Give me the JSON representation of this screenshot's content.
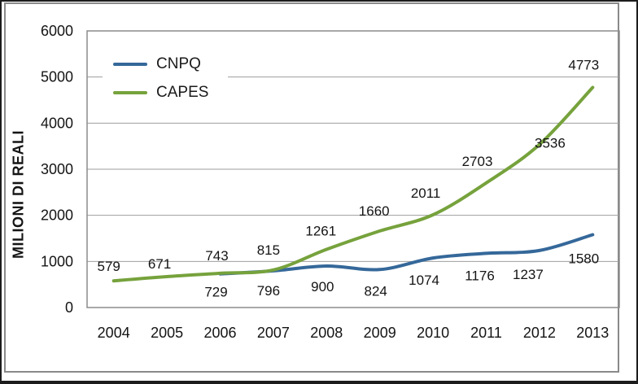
{
  "chart_data": {
    "type": "line",
    "title": "",
    "xlabel": "",
    "ylabel": "MILIONI DI REALI",
    "categories": [
      "2004",
      "2005",
      "2006",
      "2007",
      "2008",
      "2009",
      "2010",
      "2011",
      "2012",
      "2013"
    ],
    "series": [
      {
        "name": "CNPQ",
        "color": "#35689A",
        "values": [
          null,
          null,
          729,
          796,
          900,
          824,
          1074,
          1176,
          1237,
          1580
        ],
        "labels_position": "below"
      },
      {
        "name": "CAPES",
        "color": "#76A23C",
        "values": [
          579,
          671,
          743,
          815,
          1261,
          1660,
          2011,
          2703,
          3536,
          4773
        ],
        "labels_position": "above"
      }
    ],
    "ylim": [
      0,
      6000
    ],
    "yticks": [
      0,
      1000,
      2000,
      3000,
      4000,
      5000,
      6000
    ],
    "grid": true,
    "data_labels": true,
    "legend_position": "top-left",
    "colors": {
      "grid": "#9e9e9e",
      "plot_border": "#8c8c8c",
      "frame_border": "#8a8a8a",
      "outer_border": "#1c1c1c",
      "text": "#141414"
    }
  }
}
